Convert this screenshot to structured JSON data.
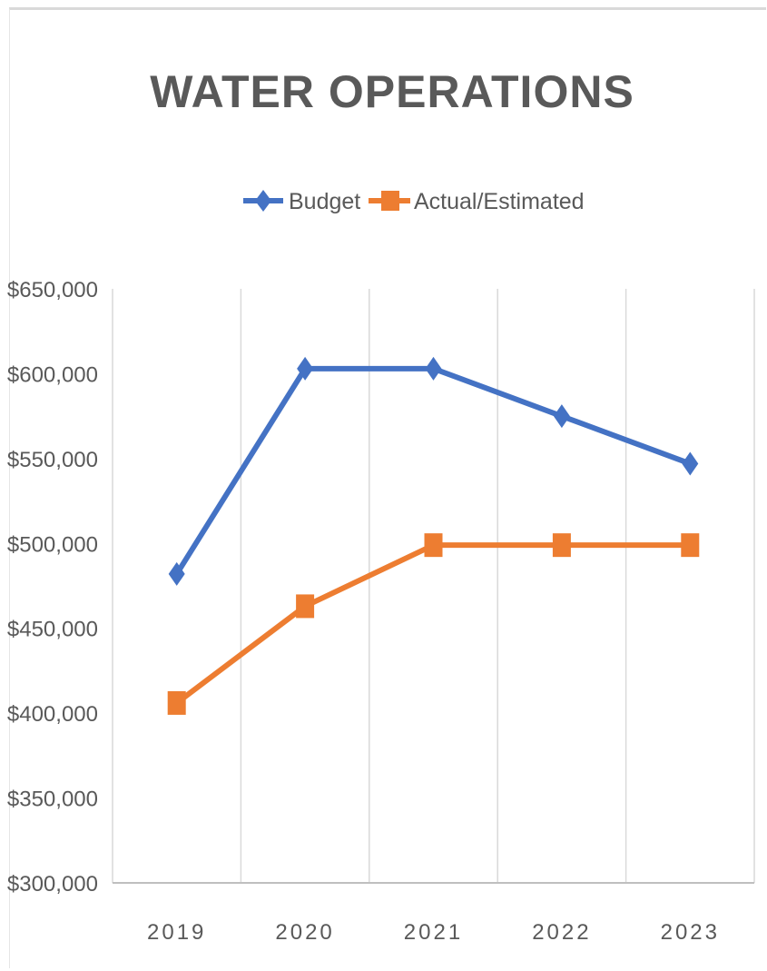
{
  "chart_data": {
    "type": "line",
    "title": "WATER OPERATIONS",
    "categories": [
      "2019",
      "2020",
      "2021",
      "2022",
      "2023"
    ],
    "series": [
      {
        "name": "Budget",
        "values": [
          482000,
          603000,
          603000,
          575000,
          547000
        ],
        "color": "#4472c4",
        "marker": "diamond"
      },
      {
        "name": "Actual/Estimated",
        "values": [
          406000,
          463000,
          499000,
          499000,
          499000
        ],
        "color": "#ed7d31",
        "marker": "square"
      }
    ],
    "ylim": [
      300000,
      650000
    ],
    "yticks": [
      300000,
      350000,
      400000,
      450000,
      500000,
      550000,
      600000,
      650000
    ],
    "ytick_labels": [
      "$300,000",
      "$350,000",
      "$400,000",
      "$450,000",
      "$500,000",
      "$550,000",
      "$600,000",
      "$650,000"
    ],
    "grid": "vertical",
    "legend_position": "top"
  }
}
